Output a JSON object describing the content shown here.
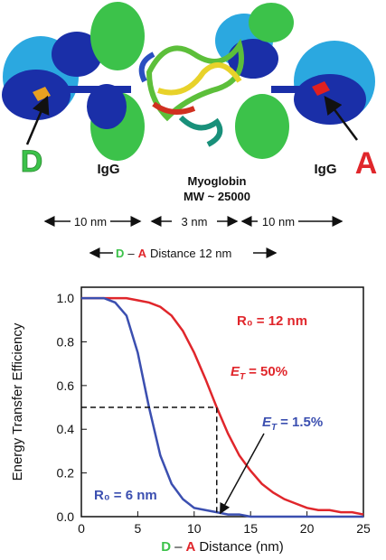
{
  "diagram": {
    "donor": "D",
    "acceptor": "A",
    "igg_left": "IgG",
    "protein": "Myoglobin",
    "mw": "MW ~ 25000",
    "igg_right": "IgG",
    "scale": [
      "10 nm",
      "3 nm",
      "10 nm"
    ],
    "distance_parts": [
      "D",
      "–",
      "A",
      "Distance 12 nm"
    ]
  },
  "chart_data": {
    "type": "line",
    "ylabel": "Energy Transfer Efficiency",
    "xlabel_parts": [
      "D",
      "–",
      "A",
      "Distance (nm)"
    ],
    "x": [
      0,
      1,
      2,
      3,
      4,
      5,
      6,
      7,
      8,
      9,
      10,
      11,
      12,
      13,
      14,
      15,
      16,
      17,
      18,
      19,
      20,
      21,
      22,
      23,
      24,
      25
    ],
    "series": [
      {
        "name": "R₀ = 12 nm",
        "color": "#e0262b",
        "values": [
          1.0,
          1.0,
          1.0,
          1.0,
          1.0,
          0.99,
          0.98,
          0.96,
          0.92,
          0.85,
          0.75,
          0.63,
          0.5,
          0.38,
          0.28,
          0.21,
          0.15,
          0.11,
          0.08,
          0.06,
          0.04,
          0.03,
          0.03,
          0.02,
          0.02,
          0.01
        ]
      },
      {
        "name": "R₀ = 6 nm",
        "color": "#3b4fb0",
        "values": [
          1.0,
          1.0,
          1.0,
          0.98,
          0.92,
          0.75,
          0.5,
          0.28,
          0.15,
          0.08,
          0.04,
          0.03,
          0.02,
          0.01,
          0.01,
          0.0,
          0.0,
          0.0,
          0.0,
          0.0,
          0.0,
          0.0,
          0.0,
          0.0,
          0.0,
          0.0
        ]
      }
    ],
    "annotations": [
      {
        "symbol": "E",
        "subscript": "T",
        "text": "= 50%",
        "color": "#e0262b"
      },
      {
        "symbol": "E",
        "subscript": "T",
        "text": "= 1.5%",
        "color": "#3b4fb0"
      }
    ],
    "reference_point": {
      "x": 12,
      "y": 0.5
    },
    "xlim": [
      0,
      25
    ],
    "ylim": [
      0,
      1.05
    ],
    "xticks": [
      0,
      5,
      10,
      15,
      20,
      25
    ],
    "yticks": [
      {
        "value": 0,
        "label": "0.0"
      },
      {
        "value": 0.2,
        "label": "0.2"
      },
      {
        "value": 0.4,
        "label": "0.4"
      },
      {
        "value": 0.6,
        "label": "0.6"
      },
      {
        "value": 0.8,
        "label": "0.8"
      },
      {
        "value": 1.0,
        "label": "1.0"
      }
    ]
  }
}
